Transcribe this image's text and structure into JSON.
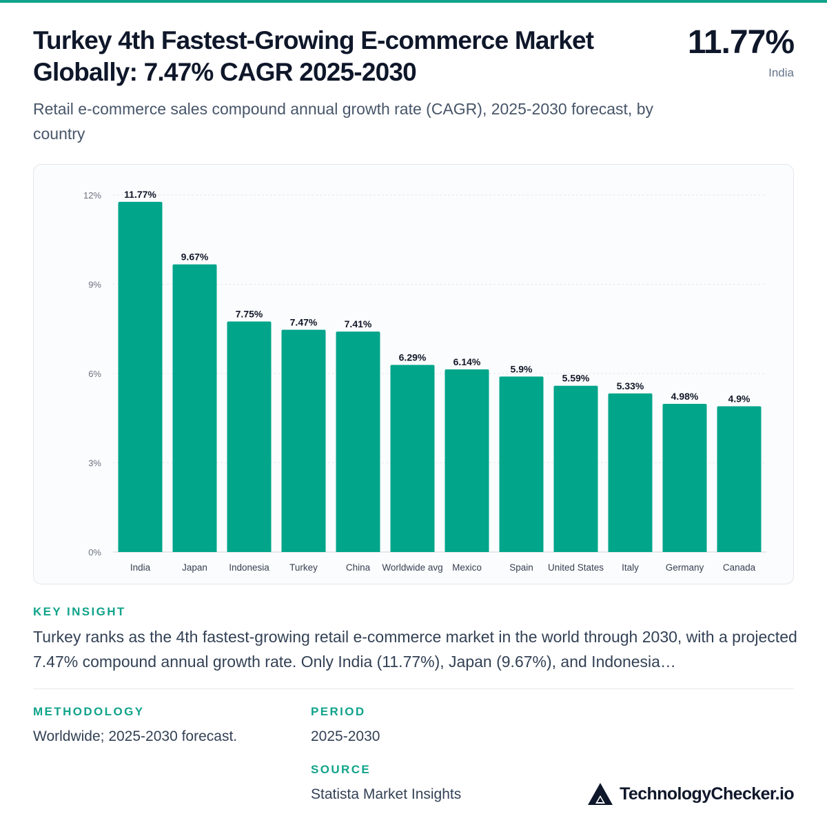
{
  "header": {
    "title": "Turkey 4th Fastest-Growing E-commerce Market Globally: 7.47% CAGR 2025-2030",
    "subtitle": "Retail e-commerce sales compound annual growth rate (CAGR), 2025-2030 forecast, by country",
    "headline_value": "11.77%",
    "headline_label": "India"
  },
  "chart_data": {
    "type": "bar",
    "title": "",
    "xlabel": "",
    "ylabel": "",
    "categories": [
      "India",
      "Japan",
      "Indonesia",
      "Turkey",
      "China",
      "Worldwide avg",
      "Mexico",
      "Spain",
      "United States",
      "Italy",
      "Germany",
      "Canada"
    ],
    "values": [
      11.77,
      9.67,
      7.75,
      7.47,
      7.41,
      6.29,
      6.14,
      5.9,
      5.59,
      5.33,
      4.98,
      4.9
    ],
    "value_labels": [
      "11.77%",
      "9.67%",
      "7.75%",
      "7.47%",
      "7.41%",
      "6.29%",
      "6.14%",
      "5.9%",
      "5.59%",
      "5.33%",
      "4.98%",
      "4.9%"
    ],
    "ylim": [
      0,
      12
    ],
    "y_ticks": [
      0,
      3,
      6,
      9,
      12
    ],
    "y_tick_labels": [
      "0%",
      "3%",
      "6%",
      "9%",
      "12%"
    ],
    "grid": true,
    "bar_color": "#00a58a"
  },
  "insight": {
    "label": "KEY INSIGHT",
    "text": "Turkey ranks as the 4th fastest-growing retail e-commerce market in the world through 2030, with a projected 7.47% compound annual growth rate. Only India (11.77%), Japan (9.67%), and Indonesia…"
  },
  "meta": {
    "methodology_label": "METHODOLOGY",
    "methodology_text": "Worldwide; 2025-2030 forecast.",
    "period_label": "PERIOD",
    "period_text": "2025-2030",
    "source_label": "SOURCE",
    "source_text": "Statista Market Insights"
  },
  "brand": {
    "name": "TechnologyChecker.io",
    "icon": "triangle-logo-icon"
  },
  "colors": {
    "accent": "#10a38a",
    "bar": "#00a58a",
    "title": "#0f172a",
    "muted": "#64748b"
  }
}
